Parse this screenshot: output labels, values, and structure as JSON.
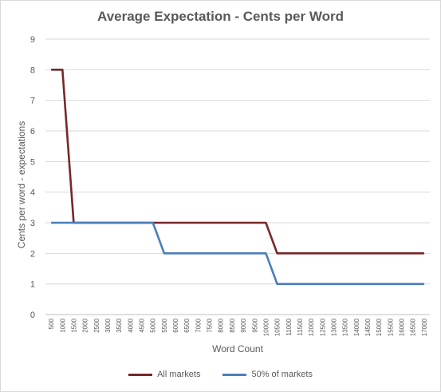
{
  "chart_data": {
    "type": "line",
    "title": "Average Expectation - Cents per Word",
    "xlabel": "Word Count",
    "ylabel": "Cents per word -  expectations",
    "categories": [
      "500",
      "1000",
      "1500",
      "2000",
      "2500",
      "3000",
      "3500",
      "4000",
      "4500",
      "5000",
      "5500",
      "6000",
      "6500",
      "7000",
      "7500",
      "8000",
      "8500",
      "9000",
      "9500",
      "10000",
      "10500",
      "11000",
      "11500",
      "12000",
      "12500",
      "13000",
      "13500",
      "14000",
      "14500",
      "15000",
      "15500",
      "16000",
      "16500",
      "17000"
    ],
    "ylim": [
      0,
      9
    ],
    "yticks": [
      "0",
      "1",
      "2",
      "3",
      "4",
      "5",
      "6",
      "7",
      "8",
      "9"
    ],
    "grid": "horizontal",
    "legend_position": "bottom",
    "series": [
      {
        "name": "All markets",
        "color": "#772828",
        "values": [
          8,
          8,
          3,
          3,
          3,
          3,
          3,
          3,
          3,
          3,
          3,
          3,
          3,
          3,
          3,
          3,
          3,
          3,
          3,
          3,
          2,
          2,
          2,
          2,
          2,
          2,
          2,
          2,
          2,
          2,
          2,
          2,
          2,
          2
        ]
      },
      {
        "name": "50% of markets",
        "color": "#4a7ebb",
        "values": [
          3,
          3,
          3,
          3,
          3,
          3,
          3,
          3,
          3,
          3,
          2,
          2,
          2,
          2,
          2,
          2,
          2,
          2,
          2,
          2,
          1,
          1,
          1,
          1,
          1,
          1,
          1,
          1,
          1,
          1,
          1,
          1,
          1,
          1
        ]
      }
    ]
  }
}
